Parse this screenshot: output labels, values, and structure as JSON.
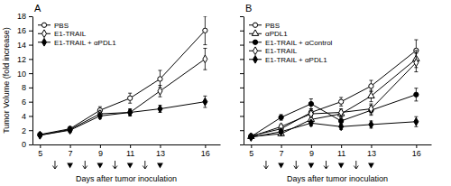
{
  "chart_data": [
    {
      "type": "line",
      "title": "A",
      "x_label": "Days after tumor inoculation",
      "y_label": "Tumor Volume (fold increase)",
      "x": [
        5,
        7,
        9,
        11,
        13,
        16
      ],
      "xlim": [
        4.5,
        17
      ],
      "xticks": [
        5,
        7,
        9,
        11,
        13,
        16
      ],
      "ylim": [
        0,
        18
      ],
      "yticks": [
        0,
        2,
        4,
        6,
        8,
        10,
        12,
        14,
        16,
        18
      ],
      "grid": false,
      "legend": "upper left",
      "series": [
        {
          "name": "PBS",
          "color": "black",
          "marker": "circle-open",
          "values": [
            1.4,
            2.2,
            4.8,
            6.5,
            9.2,
            16.0
          ],
          "errors": [
            0.2,
            0.3,
            0.5,
            0.7,
            1.2,
            2.0
          ]
        },
        {
          "name": "E1-TRAIL",
          "color": "black",
          "marker": "diamond-open",
          "values": [
            1.3,
            2.1,
            4.3,
            4.5,
            7.5,
            12.0
          ],
          "errors": [
            0.2,
            0.3,
            0.4,
            0.5,
            0.8,
            1.5
          ]
        },
        {
          "name": "E1-TRAIL + αPDL1",
          "color": "black",
          "marker": "diamond",
          "values": [
            1.3,
            2.0,
            4.0,
            4.5,
            5.0,
            6.0
          ],
          "errors": [
            0.2,
            0.3,
            0.4,
            0.4,
            0.5,
            0.8
          ]
        }
      ],
      "arrow_x": [
        6,
        8,
        10,
        12
      ],
      "triangle_x": [
        7,
        9,
        11,
        13
      ]
    },
    {
      "type": "line",
      "title": "B",
      "x_label": "Days after tumor inoculation",
      "x": [
        5,
        7,
        9,
        11,
        13,
        16
      ],
      "xlim": [
        4.5,
        17
      ],
      "xticks": [
        5,
        7,
        9,
        11,
        13,
        16
      ],
      "ylim": [
        0,
        18
      ],
      "yticks": [
        0,
        2,
        4,
        6,
        8,
        10,
        12,
        14,
        16,
        18
      ],
      "tick_labels": "x",
      "grid": false,
      "legend": "upper left",
      "series": [
        {
          "name": "PBS",
          "color": "black",
          "marker": "circle-open",
          "values": [
            1.2,
            2.2,
            4.5,
            6.0,
            8.2,
            13.2
          ],
          "errors": [
            0.15,
            0.3,
            0.5,
            0.6,
            0.8,
            1.5
          ]
        },
        {
          "name": "αPDL1",
          "color": "black",
          "marker": "triangle-open",
          "values": [
            1.1,
            1.5,
            3.5,
            4.3,
            6.8,
            12.0
          ],
          "errors": [
            0.15,
            0.3,
            0.5,
            0.5,
            0.8,
            1.2
          ]
        },
        {
          "name": "E1-TRAIL + αControl",
          "color": "black",
          "marker": "circle",
          "values": [
            1.1,
            3.8,
            5.7,
            3.3,
            4.8,
            7.0
          ],
          "errors": [
            0.15,
            0.4,
            0.7,
            0.5,
            0.7,
            0.9
          ]
        },
        {
          "name": "E1-TRAIL",
          "color": "black",
          "marker": "diamond-open",
          "values": [
            1.1,
            2.5,
            4.3,
            4.5,
            5.0,
            11.5
          ],
          "errors": [
            0.15,
            0.3,
            0.5,
            0.5,
            0.7,
            1.3
          ]
        },
        {
          "name": "E1-TRAIL + αPDL1",
          "color": "black",
          "marker": "diamond",
          "values": [
            1.0,
            1.8,
            3.0,
            2.5,
            2.8,
            3.2
          ],
          "errors": [
            0.1,
            0.3,
            0.4,
            0.4,
            0.5,
            0.7
          ]
        }
      ],
      "arrow_x": [
        6,
        8,
        10,
        12
      ],
      "triangle_x": [
        7,
        9,
        11,
        13
      ]
    }
  ]
}
